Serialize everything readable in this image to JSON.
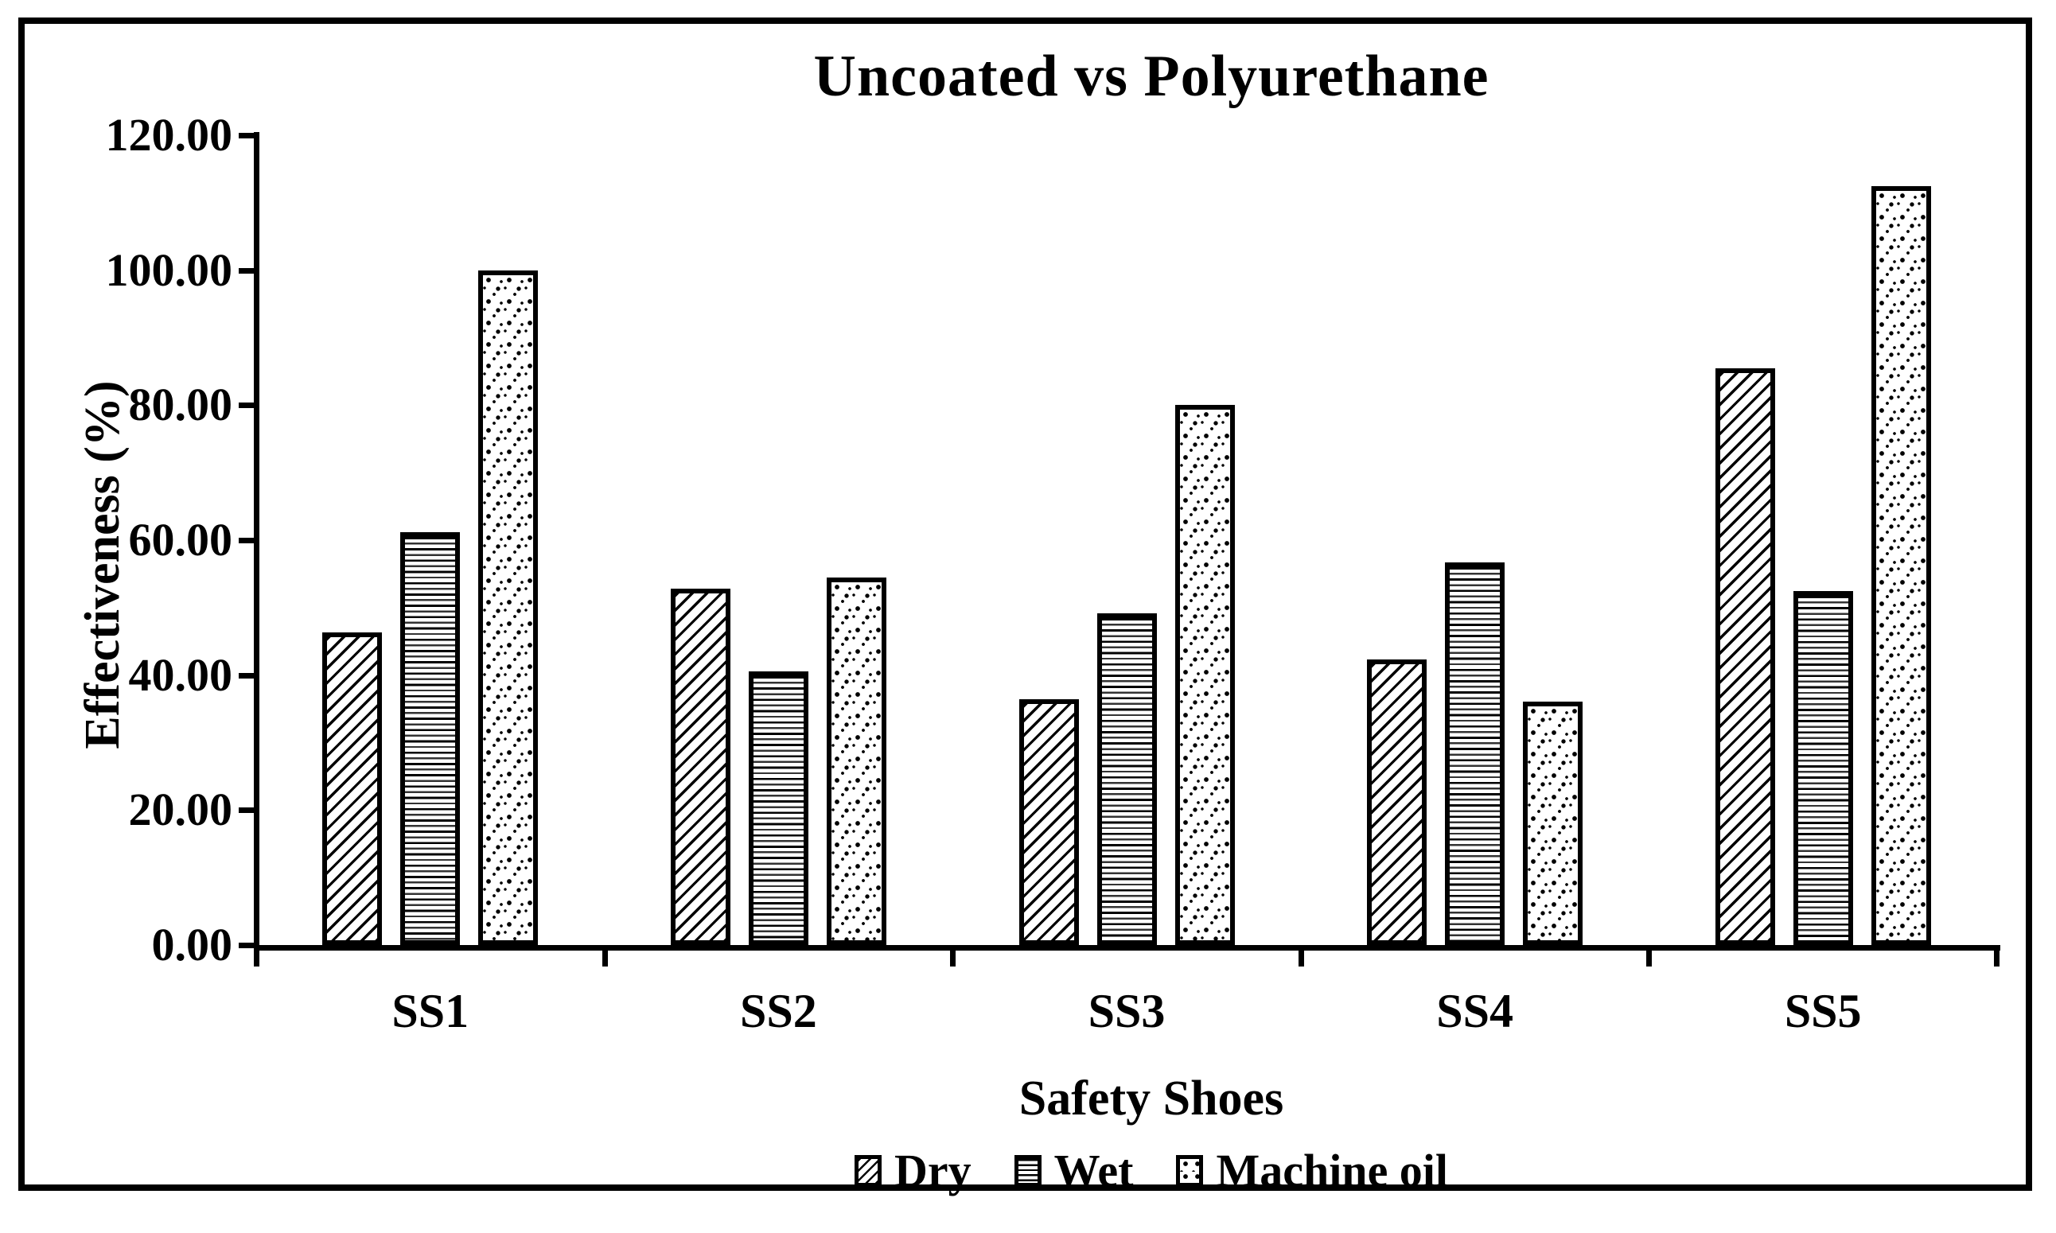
{
  "chart_data": {
    "type": "bar",
    "title": "Uncoated vs Polyurethane",
    "xlabel": "Safety Shoes",
    "ylabel": "Effectiveness (%)",
    "categories": [
      "SS1",
      "SS2",
      "SS3",
      "SS4",
      "SS5"
    ],
    "series": [
      {
        "name": "Dry",
        "pattern": "diagonal-hatch",
        "values": [
          46.3,
          52.8,
          36.4,
          42.3,
          85.5
        ]
      },
      {
        "name": "Wet",
        "pattern": "horizontal-lines",
        "values": [
          61.2,
          40.6,
          49.2,
          56.7,
          52.4
        ]
      },
      {
        "name": "Machine oil",
        "pattern": "dots",
        "values": [
          100.0,
          54.5,
          80.0,
          36.1,
          112.4
        ]
      }
    ],
    "ylim": [
      0,
      120
    ],
    "ytick_step": 20,
    "ytick_labels": [
      "0.00",
      "20.00",
      "40.00",
      "60.00",
      "80.00",
      "100.00",
      "120.00"
    ],
    "grid": false,
    "legend_position": "bottom",
    "bar_fill_color": "#ffffff",
    "line_color": "#000000"
  }
}
